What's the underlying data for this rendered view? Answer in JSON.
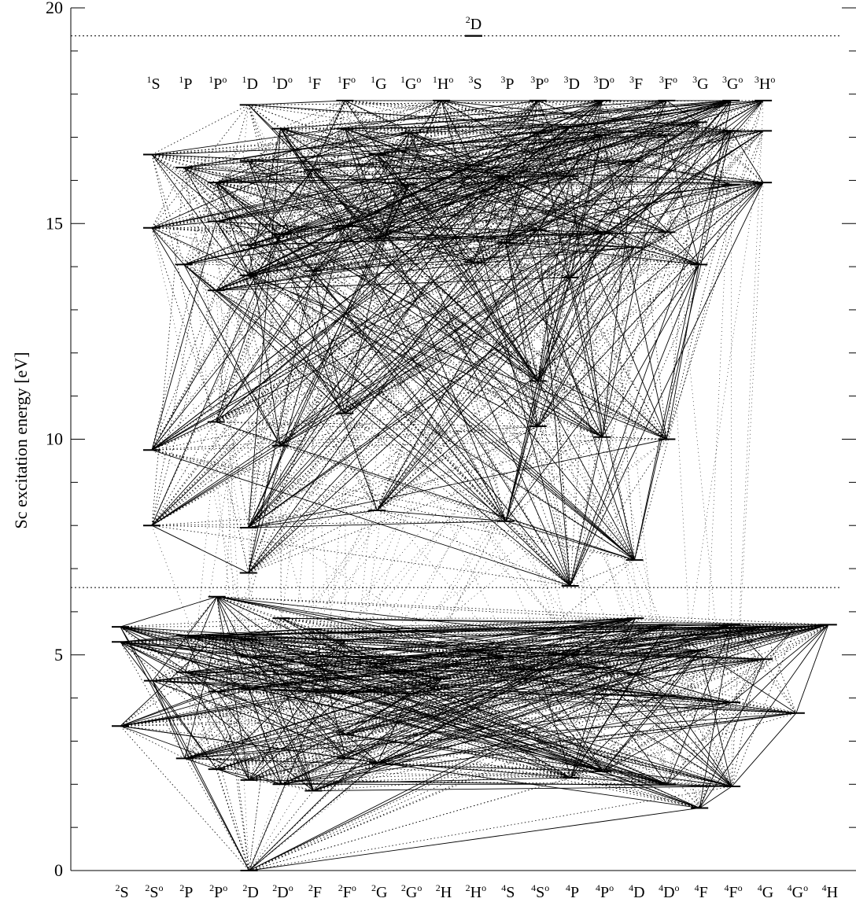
{
  "chart_data": {
    "type": "diagram",
    "title": "",
    "ylabel": "Sc  excitation energy [eV]",
    "ylim": [
      0,
      20
    ],
    "y_ticks": [
      0,
      5,
      10,
      15,
      20
    ],
    "y_tick_labels": [
      "0",
      "5",
      "10",
      "15",
      "20"
    ],
    "limits": [
      {
        "label": "",
        "energy": 6.56
      },
      {
        "label": "2D",
        "energy": 19.35
      }
    ],
    "ion_label": {
      "base": "D",
      "mult": "2",
      "parity": ""
    },
    "scii_terms": [
      {
        "base": "S",
        "mult": "1",
        "parity": ""
      },
      {
        "base": "P",
        "mult": "1",
        "parity": ""
      },
      {
        "base": "P",
        "mult": "1",
        "parity": "o"
      },
      {
        "base": "D",
        "mult": "1",
        "parity": ""
      },
      {
        "base": "D",
        "mult": "1",
        "parity": "o"
      },
      {
        "base": "F",
        "mult": "1",
        "parity": ""
      },
      {
        "base": "F",
        "mult": "1",
        "parity": "o"
      },
      {
        "base": "G",
        "mult": "1",
        "parity": ""
      },
      {
        "base": "G",
        "mult": "1",
        "parity": "o"
      },
      {
        "base": "H",
        "mult": "1",
        "parity": "o"
      },
      {
        "base": "S",
        "mult": "3",
        "parity": ""
      },
      {
        "base": "P",
        "mult": "3",
        "parity": ""
      },
      {
        "base": "P",
        "mult": "3",
        "parity": "o"
      },
      {
        "base": "D",
        "mult": "3",
        "parity": ""
      },
      {
        "base": "D",
        "mult": "3",
        "parity": "o"
      },
      {
        "base": "F",
        "mult": "3",
        "parity": ""
      },
      {
        "base": "F",
        "mult": "3",
        "parity": "o"
      },
      {
        "base": "G",
        "mult": "3",
        "parity": ""
      },
      {
        "base": "G",
        "mult": "3",
        "parity": "o"
      },
      {
        "base": "H",
        "mult": "3",
        "parity": "o"
      }
    ],
    "sci_terms": [
      {
        "base": "S",
        "mult": "2",
        "parity": ""
      },
      {
        "base": "S",
        "mult": "2",
        "parity": "o"
      },
      {
        "base": "P",
        "mult": "2",
        "parity": ""
      },
      {
        "base": "P",
        "mult": "2",
        "parity": "o"
      },
      {
        "base": "D",
        "mult": "2",
        "parity": ""
      },
      {
        "base": "D",
        "mult": "2",
        "parity": "o"
      },
      {
        "base": "F",
        "mult": "2",
        "parity": ""
      },
      {
        "base": "F",
        "mult": "2",
        "parity": "o"
      },
      {
        "base": "G",
        "mult": "2",
        "parity": ""
      },
      {
        "base": "G",
        "mult": "2",
        "parity": "o"
      },
      {
        "base": "H",
        "mult": "2",
        "parity": ""
      },
      {
        "base": "H",
        "mult": "2",
        "parity": "o"
      },
      {
        "base": "S",
        "mult": "4",
        "parity": ""
      },
      {
        "base": "S",
        "mult": "4",
        "parity": "o"
      },
      {
        "base": "P",
        "mult": "4",
        "parity": ""
      },
      {
        "base": "P",
        "mult": "4",
        "parity": "o"
      },
      {
        "base": "D",
        "mult": "4",
        "parity": ""
      },
      {
        "base": "D",
        "mult": "4",
        "parity": "o"
      },
      {
        "base": "F",
        "mult": "4",
        "parity": ""
      },
      {
        "base": "F",
        "mult": "4",
        "parity": "o"
      },
      {
        "base": "G",
        "mult": "4",
        "parity": ""
      },
      {
        "base": "G",
        "mult": "4",
        "parity": "o"
      },
      {
        "base": "H",
        "mult": "4",
        "parity": ""
      }
    ],
    "scii_levels": [
      {
        "term": 0,
        "energies": [
          16.6,
          14.9,
          9.75,
          8.0
        ]
      },
      {
        "term": 1,
        "energies": [
          16.3,
          14.05
        ]
      },
      {
        "term": 2,
        "energies": [
          15.95,
          15.05,
          13.45,
          10.4
        ]
      },
      {
        "term": 3,
        "energies": [
          17.75,
          16.45,
          14.5,
          13.8,
          7.95,
          6.9
        ]
      },
      {
        "term": 4,
        "energies": [
          17.2,
          14.75,
          9.85
        ]
      },
      {
        "term": 5,
        "energies": [
          16.25,
          13.9
        ]
      },
      {
        "term": 6,
        "energies": [
          17.85,
          17.2,
          14.95,
          10.6
        ]
      },
      {
        "term": 7,
        "energies": [
          16.6,
          14.65,
          8.35
        ]
      },
      {
        "term": 8,
        "energies": [
          17.1,
          15.9
        ]
      },
      {
        "term": 9,
        "energies": [
          17.85
        ]
      },
      {
        "term": 10,
        "energies": [
          16.35,
          14.1
        ]
      },
      {
        "term": 11,
        "energies": [
          16.1,
          14.55,
          8.1
        ]
      },
      {
        "term": 12,
        "energies": [
          17.85,
          17.1,
          14.85,
          11.35,
          10.3
        ]
      },
      {
        "term": 13,
        "energies": [
          17.25,
          16.1,
          13.75,
          6.6
        ]
      },
      {
        "term": 14,
        "energies": [
          17.85,
          17.05,
          14.8,
          10.05
        ]
      },
      {
        "term": 15,
        "energies": [
          16.45,
          14.45,
          7.2
        ]
      },
      {
        "term": 16,
        "energies": [
          17.85,
          17.05,
          14.8,
          10.0
        ]
      },
      {
        "term": 17,
        "energies": [
          17.35,
          14.05
        ]
      },
      {
        "term": 18,
        "energies": [
          17.85,
          17.15,
          15.9
        ]
      },
      {
        "term": 19,
        "energies": [
          17.85,
          17.15,
          15.95
        ]
      }
    ],
    "sci_levels": [
      {
        "term": 0,
        "energies": [
          5.65,
          5.3,
          3.35
        ]
      },
      {
        "term": 1,
        "energies": [
          4.4
        ]
      },
      {
        "term": 2,
        "energies": [
          5.45,
          4.6,
          2.6
        ]
      },
      {
        "term": 3,
        "energies": [
          6.35,
          5.45,
          4.15,
          2.35
        ]
      },
      {
        "term": 4,
        "energies": [
          5.35,
          4.95,
          4.2,
          2.1,
          0.0
        ]
      },
      {
        "term": 5,
        "energies": [
          5.85,
          4.55,
          2.0
        ]
      },
      {
        "term": 6,
        "energies": [
          5.6,
          4.75,
          1.85
        ]
      },
      {
        "term": 7,
        "energies": [
          5.35,
          4.1,
          3.15,
          2.6
        ]
      },
      {
        "term": 8,
        "energies": [
          4.8,
          2.5
        ]
      },
      {
        "term": 9,
        "energies": [
          4.1
        ]
      },
      {
        "term": 10,
        "energies": [
          4.45
        ]
      },
      {
        "term": 11,
        "energies": [
          5.1
        ]
      },
      {
        "term": 12,
        "energies": [
          4.95
        ]
      },
      {
        "term": 13,
        "energies": [
          4.65
        ]
      },
      {
        "term": 14,
        "energies": [
          5.0,
          2.15
        ]
      },
      {
        "term": 15,
        "energies": [
          4.7,
          2.3
        ]
      },
      {
        "term": 16,
        "energies": [
          5.85,
          4.55
        ]
      },
      {
        "term": 17,
        "energies": [
          5.7,
          4.05,
          2.0
        ]
      },
      {
        "term": 18,
        "energies": [
          5.1,
          1.45
        ]
      },
      {
        "term": 19,
        "energies": [
          5.7,
          3.9,
          1.95
        ]
      },
      {
        "term": 20,
        "energies": [
          5.65,
          4.9
        ]
      },
      {
        "term": 21,
        "energies": [
          5.65,
          3.65
        ]
      },
      {
        "term": 22,
        "energies": [
          5.7
        ]
      }
    ]
  }
}
